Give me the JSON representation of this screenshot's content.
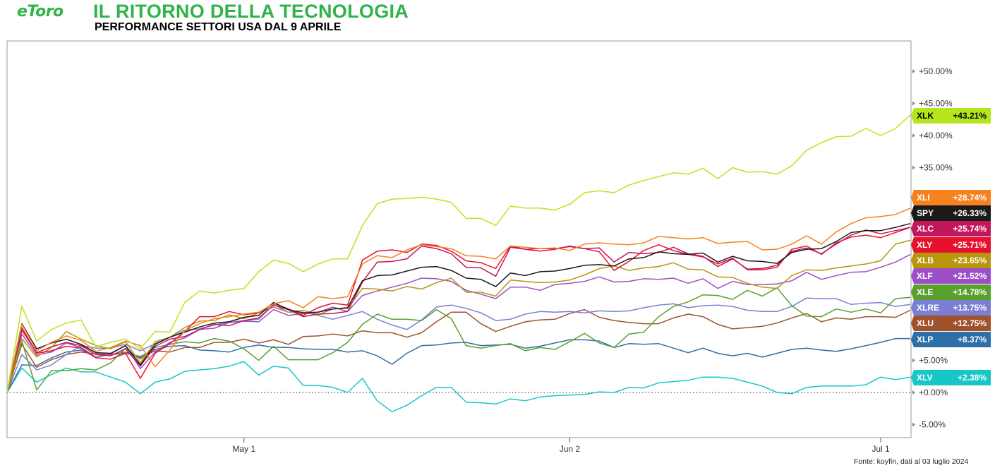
{
  "header": {
    "logo_text": "eToro",
    "title": "IL RITORNO DELLA TECNOLOGIA",
    "subtitle": "PERFORMANCE SETTORI USA DAL 9 APRILE"
  },
  "footer": {
    "source": "Fonte: koyfin, dati al 03 luglio 2024"
  },
  "chart_data": {
    "type": "line",
    "title": "IL RITORNO DELLA TECNOLOGIA",
    "subtitle": "PERFORMANCE SETTORI USA DAL 9 APRILE",
    "xlabel": "",
    "ylabel": "",
    "x_tick_labels": [
      "May 1",
      "Jun 2",
      "Jul 1"
    ],
    "y_tick_labels": [
      "-5.00%",
      "+0.00%",
      "+5.00%",
      "+35.00%",
      "+40.00%",
      "+45.00%",
      "+50.00%"
    ],
    "ylim": [
      -7,
      55
    ],
    "zero_line": "dotted",
    "grid": false,
    "legend": "right-side value tags",
    "series": [
      {
        "name": "XLK",
        "color": "#b5e61d",
        "end_label": "+43.21%",
        "values": [
          0.0,
          13.4,
          8.0,
          9.8,
          10.8,
          11.3,
          7.1,
          7.8,
          8.3,
          6.8,
          9.5,
          9.4,
          14.0,
          15.8,
          15.5,
          15.9,
          16.2,
          18.8,
          20.6,
          20.1,
          18.8,
          20.0,
          20.8,
          20.8,
          26.0,
          29.4,
          30.1,
          30.2,
          30.4,
          30.1,
          29.6,
          27.1,
          27.1,
          26.0,
          29.0,
          28.7,
          28.7,
          28.4,
          29.3,
          31.1,
          31.4,
          31.1,
          32.3,
          33.0,
          33.6,
          34.2,
          34.0,
          34.9,
          33.3,
          35.0,
          34.3,
          34.4,
          34.0,
          35.3,
          37.7,
          38.9,
          39.8,
          39.9,
          41.1,
          40.0,
          41.1,
          43.2
        ]
      },
      {
        "name": "XLI",
        "color": "#f5821f",
        "end_label": "+28.74%",
        "values": [
          0.0,
          10.6,
          6.5,
          7.8,
          8.8,
          8.1,
          6.4,
          7.0,
          8.0,
          7.3,
          4.0,
          6.6,
          9.6,
          10.7,
          11.5,
          11.8,
          12.2,
          12.5,
          13.8,
          14.3,
          13.2,
          14.9,
          14.6,
          14.9,
          20.0,
          21.3,
          21.0,
          22.2,
          23.0,
          22.7,
          22.4,
          21.3,
          21.2,
          20.8,
          22.8,
          22.6,
          22.4,
          22.5,
          22.1,
          23.1,
          23.3,
          23.1,
          23.0,
          23.3,
          24.3,
          24.1,
          23.9,
          24.1,
          23.2,
          23.4,
          23.5,
          22.2,
          22.3,
          23.1,
          24.4,
          23.1,
          25.0,
          26.3,
          27.2,
          27.4,
          27.7,
          28.7
        ]
      },
      {
        "name": "SPY",
        "color": "#1a1a1a",
        "end_label": "+26.33%",
        "values": [
          0.0,
          10.7,
          6.8,
          7.7,
          8.3,
          7.5,
          6.2,
          6.1,
          7.3,
          4.3,
          7.5,
          8.6,
          9.4,
          10.2,
          10.8,
          11.0,
          11.7,
          12.0,
          14.0,
          12.9,
          12.4,
          12.5,
          13.0,
          13.2,
          17.4,
          18.2,
          18.3,
          18.9,
          19.5,
          19.6,
          19.0,
          17.8,
          17.6,
          16.5,
          18.6,
          18.2,
          18.8,
          18.9,
          19.3,
          19.8,
          19.9,
          19.7,
          20.8,
          21.0,
          21.9,
          21.6,
          21.5,
          21.7,
          20.3,
          21.2,
          20.5,
          20.4,
          20.1,
          21.8,
          22.3,
          22.4,
          23.5,
          24.9,
          25.2,
          25.2,
          25.7,
          26.3
        ]
      },
      {
        "name": "XLC",
        "color": "#c2185b",
        "end_label": "+25.74%",
        "values": [
          0.0,
          9.7,
          6.2,
          7.1,
          7.8,
          7.3,
          5.9,
          5.7,
          6.8,
          4.1,
          7.2,
          8.3,
          8.7,
          9.8,
          10.6,
          10.4,
          11.2,
          11.6,
          13.6,
          12.9,
          11.8,
          12.2,
          12.3,
          12.6,
          17.2,
          20.3,
          20.4,
          20.8,
          22.8,
          22.4,
          21.6,
          19.5,
          19.4,
          18.1,
          22.6,
          22.3,
          22.4,
          22.4,
          22.7,
          22.4,
          22.5,
          20.3,
          21.8,
          21.6,
          21.8,
          22.6,
          21.6,
          21.2,
          19.6,
          20.8,
          19.2,
          19.3,
          19.8,
          22.0,
          22.5,
          21.6,
          23.1,
          24.5,
          25.3,
          24.7,
          25.2,
          25.7
        ]
      },
      {
        "name": "XLY",
        "color": "#e8112d",
        "end_label": "+25.71%",
        "values": [
          0.0,
          10.1,
          6.1,
          6.5,
          7.2,
          6.9,
          5.4,
          5.2,
          6.1,
          2.2,
          6.1,
          7.6,
          9.5,
          11.8,
          11.8,
          12.6,
          12.1,
          12.4,
          13.9,
          13.0,
          12.0,
          13.2,
          13.9,
          13.6,
          20.6,
          22.0,
          22.2,
          21.8,
          23.1,
          22.9,
          22.0,
          20.5,
          20.2,
          19.3,
          22.8,
          22.3,
          22.0,
          22.3,
          22.8,
          22.4,
          21.9,
          19.0,
          20.4,
          22.1,
          23.0,
          22.1,
          21.5,
          21.1,
          20.0,
          20.9,
          19.1,
          19.1,
          19.5,
          22.3,
          22.8,
          21.5,
          23.3,
          24.2,
          24.5,
          24.1,
          24.9,
          25.7
        ]
      },
      {
        "name": "XLB",
        "color": "#b8960c",
        "end_label": "+23.65%",
        "values": [
          0.0,
          8.4,
          5.5,
          7.0,
          9.5,
          8.3,
          7.3,
          6.8,
          7.9,
          4.6,
          7.9,
          8.6,
          10.1,
          11.1,
          11.2,
          12.1,
          11.5,
          12.4,
          13.3,
          12.5,
          12.8,
          12.1,
          13.0,
          13.1,
          16.2,
          16.1,
          15.8,
          16.5,
          16.1,
          17.1,
          17.8,
          15.6,
          15.6,
          15.0,
          17.5,
          17.3,
          17.1,
          17.2,
          17.5,
          18.3,
          19.3,
          19.7,
          19.0,
          19.4,
          19.6,
          20.2,
          19.2,
          19.1,
          18.0,
          17.9,
          17.0,
          16.4,
          16.2,
          18.2,
          19.1,
          19.0,
          19.4,
          19.7,
          20.0,
          20.5,
          23.1,
          23.7
        ]
      },
      {
        "name": "XLF",
        "color": "#9c4fc8",
        "end_label": "+21.52%",
        "values": [
          0.0,
          9.1,
          5.8,
          6.3,
          7.7,
          7.0,
          5.5,
          6.0,
          7.3,
          3.7,
          6.3,
          7.8,
          8.5,
          9.8,
          10.0,
          10.9,
          11.1,
          11.0,
          12.9,
          12.0,
          12.3,
          12.5,
          13.3,
          12.6,
          15.1,
          15.8,
          16.4,
          17.0,
          17.8,
          17.7,
          17.3,
          15.9,
          15.3,
          14.6,
          16.4,
          16.4,
          15.9,
          16.8,
          17.0,
          17.3,
          18.0,
          17.2,
          17.3,
          17.7,
          17.6,
          17.8,
          17.0,
          17.7,
          16.2,
          17.3,
          16.8,
          16.8,
          16.9,
          17.4,
          18.7,
          17.6,
          18.2,
          18.7,
          18.8,
          19.5,
          20.3,
          21.5
        ]
      },
      {
        "name": "XLE",
        "color": "#5aa02c",
        "end_label": "+14.78%",
        "values": [
          0.0,
          8.0,
          0.4,
          3.4,
          3.4,
          3.7,
          3.5,
          4.6,
          6.9,
          5.2,
          7.0,
          7.5,
          7.9,
          7.7,
          8.4,
          8.0,
          6.8,
          5.0,
          7.2,
          5.1,
          5.1,
          5.1,
          6.2,
          7.8,
          10.6,
          12.2,
          11.4,
          11.4,
          11.2,
          12.9,
          11.5,
          7.3,
          6.9,
          7.3,
          7.6,
          6.5,
          7.0,
          6.7,
          7.9,
          9.2,
          7.7,
          7.0,
          9.1,
          9.4,
          11.8,
          13.4,
          14.1,
          15.2,
          15.1,
          14.5,
          15.9,
          15.0,
          16.3,
          13.5,
          11.9,
          11.8,
          13.0,
          12.5,
          13.0,
          12.4,
          14.6,
          14.8
        ]
      },
      {
        "name": "XLRE",
        "color": "#7b7fd4",
        "end_label": "+13.75%",
        "values": [
          0.0,
          5.9,
          3.5,
          4.3,
          5.9,
          7.3,
          6.9,
          6.9,
          7.5,
          6.5,
          7.6,
          8.6,
          9.7,
          9.9,
          10.5,
          10.9,
          11.2,
          11.4,
          13.7,
          12.5,
          12.5,
          12.0,
          11.4,
          12.0,
          12.6,
          11.4,
          10.5,
          9.8,
          11.3,
          13.3,
          13.6,
          13.1,
          12.4,
          11.2,
          11.4,
          12.2,
          12.6,
          12.5,
          12.6,
          12.4,
          12.7,
          12.6,
          12.7,
          13.2,
          13.6,
          13.8,
          13.2,
          13.5,
          13.6,
          13.4,
          12.8,
          12.6,
          12.6,
          13.4,
          14.7,
          14.6,
          14.6,
          13.7,
          13.9,
          14.0,
          13.4,
          13.7
        ]
      },
      {
        "name": "XLU",
        "color": "#a0522d",
        "end_label": "+12.75%",
        "values": [
          0.0,
          7.5,
          3.9,
          5.1,
          5.9,
          6.3,
          6.0,
          5.9,
          6.3,
          5.4,
          6.5,
          6.3,
          7.0,
          7.0,
          7.8,
          7.8,
          8.3,
          7.7,
          8.2,
          7.5,
          8.7,
          8.8,
          9.1,
          8.8,
          9.6,
          9.3,
          9.3,
          8.6,
          9.3,
          11.0,
          12.5,
          12.5,
          10.7,
          9.5,
          10.3,
          11.0,
          11.3,
          11.4,
          12.3,
          12.9,
          11.7,
          11.2,
          10.9,
          10.7,
          10.7,
          11.6,
          12.2,
          11.8,
          10.6,
          9.9,
          10.1,
          10.3,
          10.8,
          11.6,
          12.3,
          11.0,
          11.6,
          11.4,
          11.8,
          11.8,
          11.7,
          12.8
        ]
      },
      {
        "name": "XLP",
        "color": "#2f6fa7",
        "end_label": "+8.37%",
        "values": [
          0.0,
          4.3,
          4.2,
          5.4,
          6.3,
          6.6,
          5.5,
          5.9,
          6.1,
          5.6,
          6.7,
          7.2,
          7.3,
          6.6,
          6.5,
          6.3,
          7.0,
          7.4,
          7.0,
          7.0,
          6.8,
          6.7,
          6.7,
          6.3,
          6.5,
          5.7,
          4.4,
          6.1,
          7.3,
          7.4,
          7.7,
          7.8,
          7.3,
          7.4,
          7.5,
          6.9,
          7.2,
          7.7,
          8.2,
          8.2,
          8.0,
          7.0,
          7.6,
          7.5,
          7.6,
          6.9,
          6.2,
          6.9,
          6.1,
          5.7,
          6.1,
          5.5,
          6.1,
          6.7,
          6.9,
          6.6,
          6.4,
          6.8,
          7.3,
          7.8,
          8.4,
          8.4
        ]
      },
      {
        "name": "XLV",
        "color": "#17c7c7",
        "end_label": "+2.38%",
        "values": [
          0.0,
          3.8,
          1.6,
          2.8,
          3.8,
          3.2,
          3.2,
          2.4,
          1.6,
          -0.2,
          1.6,
          2.1,
          3.3,
          3.5,
          3.7,
          4.1,
          4.8,
          2.7,
          4.1,
          3.8,
          1.1,
          1.1,
          0.8,
          0.0,
          2.2,
          -1.3,
          -3.0,
          -2.0,
          -0.5,
          0.8,
          0.8,
          -1.5,
          -1.6,
          -1.8,
          -1.0,
          -1.3,
          -0.7,
          -0.5,
          -0.4,
          -0.3,
          0.1,
          0.0,
          0.8,
          0.7,
          1.5,
          1.7,
          1.9,
          2.4,
          2.4,
          2.2,
          1.6,
          1.0,
          0.0,
          -0.2,
          0.8,
          1.0,
          1.0,
          1.0,
          1.2,
          2.4,
          2.0,
          2.4
        ]
      }
    ]
  }
}
